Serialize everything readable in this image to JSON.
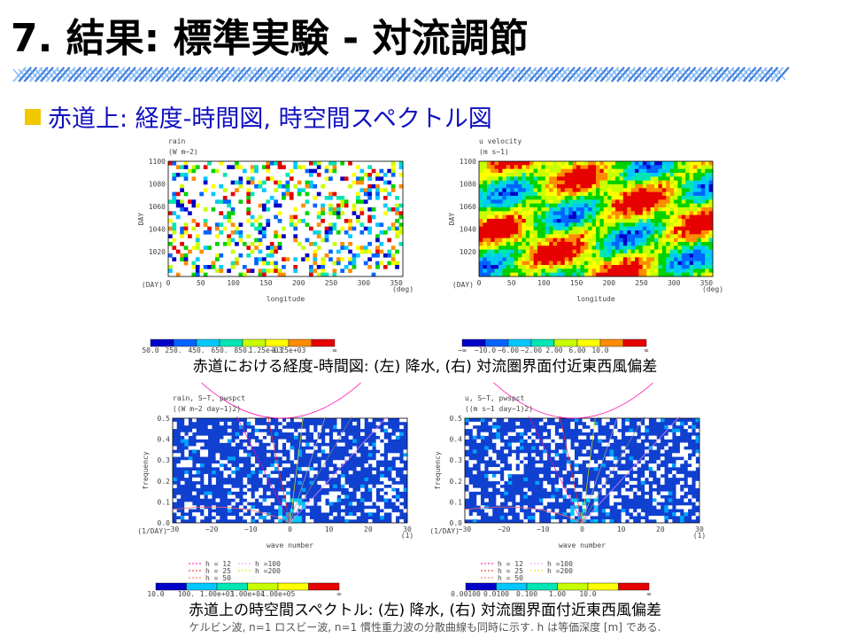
{
  "header": {
    "title": "7. 結果: 標準実験 - 対流調節"
  },
  "bullet": "赤道上: 経度-時間図, 時空間スペクトル図",
  "figures": [
    {
      "title": "rain",
      "units": "(W m−2)",
      "ylabel": "DAY",
      "yunit": "(DAY)",
      "yticks": [
        "1100",
        "1080",
        "1060",
        "1040",
        "1020"
      ],
      "xlabel": "longitude",
      "xunit": "(deg)",
      "xticks": [
        "0",
        "50",
        "100",
        "150",
        "200",
        "250",
        "300",
        "350"
      ],
      "colorbar": [
        "50.0",
        "250.",
        "450.",
        "650.",
        "850.",
        "1.25e+03",
        "1.25e+03",
        "∞"
      ]
    },
    {
      "title": "u velocity",
      "units": "(m s−1)",
      "ylabel": "DAY",
      "yunit": "(DAY)",
      "yticks": [
        "1100",
        "1080",
        "1060",
        "1040",
        "1020"
      ],
      "xlabel": "longitude",
      "xunit": "(deg)",
      "xticks": [
        "0",
        "50",
        "100",
        "150",
        "200",
        "250",
        "300",
        "350"
      ],
      "colorbar": [
        "−∞",
        "−10.0",
        "−6.00",
        "−2.00",
        "2.00",
        "6.00",
        "10.0",
        "∞"
      ]
    },
    {
      "title": "rain, S−T, pwspct",
      "units": "((W m−2 day−1)2)",
      "ylabel": "frequency",
      "yunit": "(1/DAY)",
      "yticks": [
        "0.5",
        "0.4",
        "0.3",
        "0.2",
        "0.1",
        "0.0"
      ],
      "xlabel": "wave number",
      "xunit": "(1)",
      "xticks": [
        "−30",
        "−20",
        "−10",
        "0",
        "10",
        "20",
        "30"
      ],
      "legend": [
        "h = 12",
        "h = 25",
        "h = 50",
        "h =100",
        "h =200"
      ],
      "colorbar": [
        "10.0",
        "100.",
        "1.00e+03",
        "1.00e+04",
        "1.00e+05",
        "∞"
      ]
    },
    {
      "title": "u, S−T, pwspct",
      "units": "((m s−1 day−1)2)",
      "ylabel": "frequency",
      "yunit": "(1/DAY)",
      "yticks": [
        "0.5",
        "0.4",
        "0.3",
        "0.2",
        "0.1",
        "0.0"
      ],
      "xlabel": "wave number",
      "xunit": "(1)",
      "xticks": [
        "−30",
        "−20",
        "−10",
        "0",
        "10",
        "20",
        "30"
      ],
      "legend": [
        "h = 12",
        "h = 25",
        "h = 50",
        "h =100",
        "h =200"
      ],
      "colorbar": [
        "0.00100",
        "0.0100",
        "0.100",
        "1.00",
        "10.0",
        "∞"
      ]
    }
  ],
  "captions": [
    "赤道における経度-時間図: (左) 降水, (右) 対流圏界面付近東西風偏差",
    "赤道上の時空間スペクトル: (左) 降水, (右) 対流圏界面付近東西風偏差"
  ],
  "note": "ケルビン波, n=1 ロスビー波, n=1 慣性重力波の分散曲線も同時に示す. h は等価深度 [m] である."
}
